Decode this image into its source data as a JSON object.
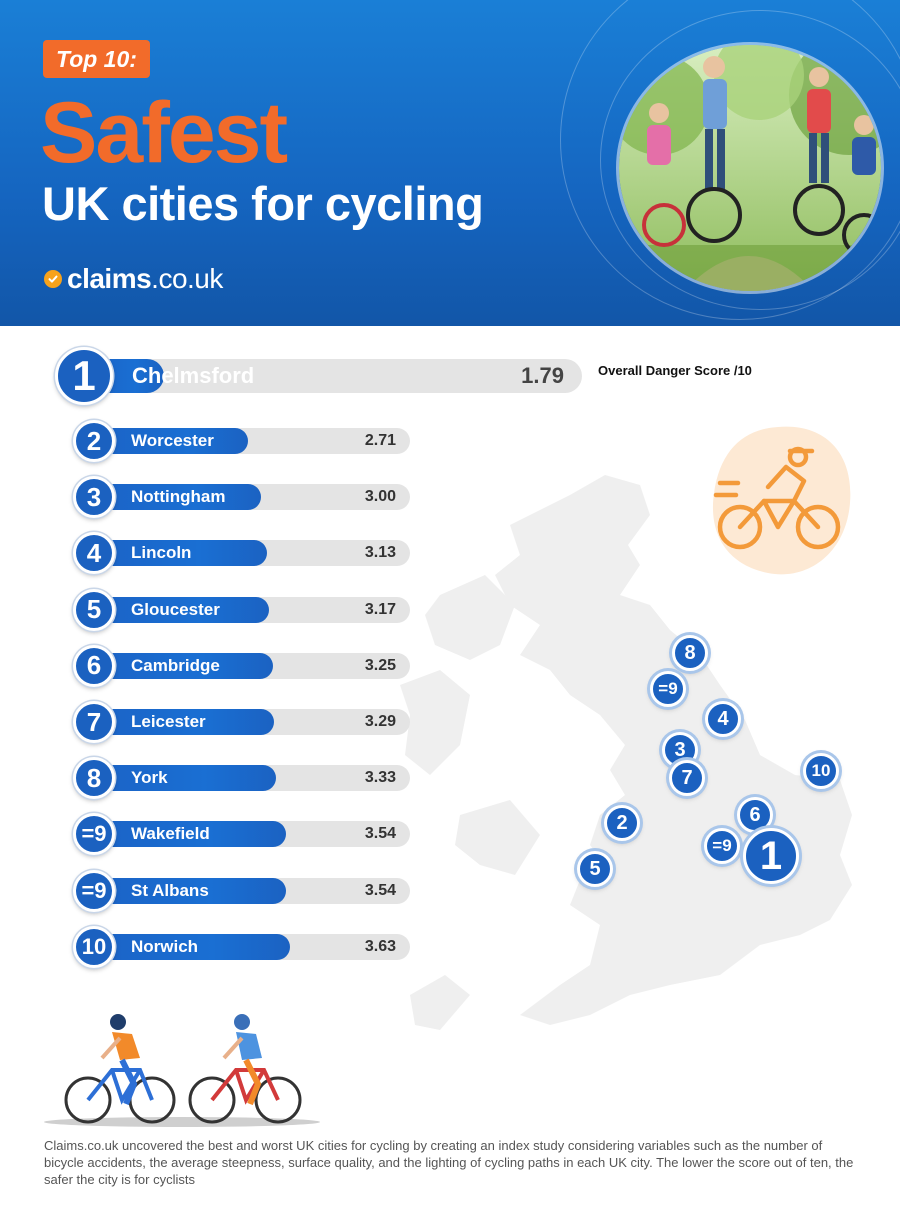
{
  "header": {
    "badge": "Top 10:",
    "title_main": "Safest",
    "title_sub": "UK cities for cycling",
    "brand_bold": "claims",
    "brand_light": ".co.uk"
  },
  "colors": {
    "header_blue": "#1565c0",
    "accent_orange": "#f26b2a",
    "bar_blue": "#1b63c6",
    "track_grey": "#e4e4e4"
  },
  "score_label": "Overall Danger Score /10",
  "chart_data": {
    "type": "bar",
    "orientation": "horizontal",
    "categories": [
      "Chelmsford",
      "Worcester",
      "Nottingham",
      "Lincoln",
      "Gloucester",
      "Cambridge",
      "Leicester",
      "York",
      "Wakefield",
      "St Albans",
      "Norwich"
    ],
    "ranks": [
      "1",
      "2",
      "3",
      "4",
      "5",
      "6",
      "7",
      "8",
      "=9",
      "=9",
      "10"
    ],
    "values": [
      1.79,
      2.71,
      3.0,
      3.13,
      3.17,
      3.25,
      3.29,
      3.33,
      3.54,
      3.54,
      3.63
    ],
    "value_labels": [
      "1.79",
      "2.71",
      "3.00",
      "3.13",
      "3.17",
      "3.25",
      "3.29",
      "3.33",
      "3.54",
      "3.54",
      "3.63"
    ],
    "value_label": "Overall Danger Score /10"
  },
  "map_markers": [
    "8",
    "=9",
    "4",
    "3",
    "7",
    "10",
    "2",
    "6",
    "=9",
    "1",
    "5"
  ],
  "footnote": "Claims.co.uk uncovered the best and worst UK cities for cycling by creating an index study considering variables such as the number of bicycle accidents, the average steepness, surface quality, and the lighting of cycling paths in each UK city. The lower the score out of ten, the safer the city is for cyclists",
  "icons": {
    "cyclist_badge": "cyclist-icon",
    "brand_check": "check-icon",
    "footer_illustration": "cyclists-illustration"
  }
}
